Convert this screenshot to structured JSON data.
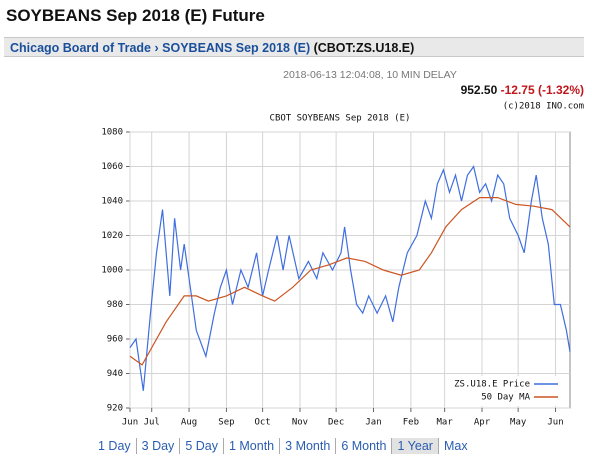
{
  "header": {
    "title": "SOYBEANS Sep 2018 (E) Future"
  },
  "breadcrumb": {
    "exchange": "Chicago Board of Trade",
    "separator": "›",
    "contract": "SOYBEANS Sep 2018 (E)",
    "symbol": "(CBOT:ZS.U18.E)"
  },
  "quote": {
    "timestamp": "2018-06-13 12:04:08, 10 MIN DELAY",
    "last": "952.50",
    "change": "-12.75 (-1.32%)",
    "copyright": "(c)2018 INO.com"
  },
  "chart_data": {
    "type": "line",
    "title": "CBOT SOYBEANS Sep 2018 (E)",
    "xlim": [
      0,
      365
    ],
    "xticks": [
      {
        "value": 0,
        "label": "Jun"
      },
      {
        "value": 18,
        "label": "Jul"
      },
      {
        "value": 49,
        "label": "Aug"
      },
      {
        "value": 80,
        "label": "Sep"
      },
      {
        "value": 110,
        "label": "Oct"
      },
      {
        "value": 141,
        "label": "Nov"
      },
      {
        "value": 171,
        "label": "Dec"
      },
      {
        "value": 202,
        "label": "Jan"
      },
      {
        "value": 233,
        "label": "Feb"
      },
      {
        "value": 261,
        "label": "Mar"
      },
      {
        "value": 292,
        "label": "Apr"
      },
      {
        "value": 322,
        "label": "May"
      },
      {
        "value": 353,
        "label": "Jun"
      }
    ],
    "ylim": [
      920,
      1080
    ],
    "yticks": [
      920,
      940,
      960,
      980,
      1000,
      1020,
      1040,
      1060,
      1080
    ],
    "grid": true,
    "legend": "lower right",
    "series": [
      {
        "name": "ZS.U18.E Price",
        "color": "#3f6ee0",
        "x": [
          0,
          5,
          11,
          17,
          22,
          27,
          33,
          37,
          42,
          45,
          50,
          55,
          63,
          70,
          75,
          80,
          85,
          92,
          98,
          105,
          110,
          115,
          122,
          127,
          132,
          140,
          148,
          155,
          160,
          168,
          175,
          178,
          183,
          188,
          193,
          198,
          205,
          212,
          218,
          223,
          230,
          238,
          245,
          250,
          255,
          260,
          265,
          270,
          275,
          280,
          285,
          290,
          295,
          300,
          305,
          310,
          315,
          322,
          327,
          333,
          337,
          342,
          347,
          352,
          357,
          362,
          365
        ],
        "values": [
          955,
          960,
          930,
          975,
          1010,
          1035,
          985,
          1030,
          1000,
          1015,
          990,
          965,
          950,
          975,
          990,
          1000,
          980,
          1000,
          990,
          1010,
          985,
          1000,
          1020,
          1000,
          1020,
          995,
          1005,
          995,
          1010,
          1000,
          1010,
          1025,
          1000,
          980,
          975,
          985,
          975,
          985,
          970,
          990,
          1010,
          1020,
          1040,
          1030,
          1050,
          1058,
          1045,
          1055,
          1040,
          1055,
          1060,
          1045,
          1050,
          1040,
          1055,
          1050,
          1030,
          1020,
          1010,
          1040,
          1055,
          1030,
          1015,
          980,
          980,
          965,
          952.5
        ]
      },
      {
        "name": "50 Day MA",
        "color": "#cc5522",
        "x": [
          0,
          10,
          30,
          45,
          55,
          65,
          80,
          95,
          110,
          120,
          135,
          150,
          165,
          180,
          195,
          210,
          225,
          240,
          250,
          262,
          275,
          290,
          305,
          320,
          335,
          350,
          365
        ],
        "values": [
          950,
          945,
          970,
          985,
          985,
          982,
          985,
          990,
          985,
          982,
          990,
          1000,
          1003,
          1007,
          1005,
          1000,
          997,
          1000,
          1010,
          1025,
          1035,
          1042,
          1042,
          1038,
          1037,
          1035,
          1025
        ]
      }
    ]
  },
  "range_links": {
    "items": [
      "1 Day",
      "3 Day",
      "5 Day",
      "1 Month",
      "3 Month",
      "6 Month",
      "1 Year",
      "Max"
    ],
    "selected_index": 6
  }
}
